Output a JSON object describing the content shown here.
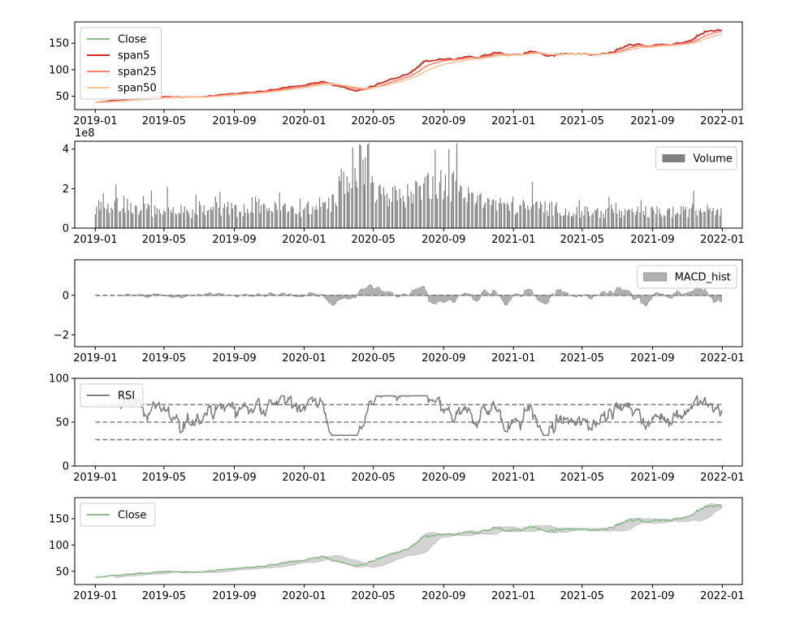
{
  "figure": {
    "background": "#ffffff"
  },
  "time_axis": {
    "start": "2019-01-01",
    "end": "2021-12-31",
    "xlim": [
      "2018-11-26",
      "2022-02-05"
    ],
    "tick_labels": [
      "2019-01",
      "2019-05",
      "2019-09",
      "2020-01",
      "2020-05",
      "2020-09",
      "2021-01",
      "2021-05",
      "2021-09",
      "2022-01"
    ]
  },
  "chart_data": [
    {
      "type": "line",
      "panel": "price",
      "ylim": [
        25,
        190
      ],
      "yticks": [
        50,
        100,
        150
      ],
      "ytick_labels": [
        "50",
        "100",
        "150"
      ],
      "x_anchor_months": [
        0,
        1,
        2,
        3,
        4,
        5,
        6,
        7,
        8,
        9,
        10,
        11,
        12,
        13,
        14,
        15,
        16,
        17,
        18,
        19,
        20,
        21,
        22,
        23,
        24,
        25,
        26,
        27,
        28,
        29,
        30,
        31,
        32,
        33,
        34,
        35,
        36
      ],
      "close": [
        38,
        42,
        44,
        47,
        50,
        47,
        50,
        52,
        55,
        58,
        62,
        66,
        72,
        78,
        68,
        60,
        70,
        82,
        92,
        115,
        118,
        120,
        125,
        132,
        128,
        135,
        125,
        130,
        128,
        130,
        140,
        148,
        145,
        150,
        155,
        170,
        176
      ],
      "series": [
        {
          "name": "Close",
          "color": "#8fbc8f",
          "span": 1
        },
        {
          "name": "span5",
          "color": "#d62728",
          "span": 5
        },
        {
          "name": "span25",
          "color": "#fa8072",
          "span": 25
        },
        {
          "name": "span50",
          "color": "#ffc299",
          "span": 50
        }
      ],
      "legend": {
        "position": "upper left",
        "entries": [
          "Close",
          "span5",
          "span25",
          "span50"
        ]
      }
    },
    {
      "type": "bar",
      "panel": "volume",
      "ylim": [
        0,
        4.4
      ],
      "yticks": [
        0,
        2,
        4
      ],
      "ytick_labels": [
        "0",
        "2",
        "4"
      ],
      "scale_label": "1e8",
      "series": [
        {
          "name": "Volume",
          "color": "#808080"
        }
      ],
      "approx_level": [
        1.2,
        1.4,
        1.1,
        1.0,
        1.0,
        0.9,
        1.0,
        1.1,
        1.0,
        1.3,
        1.1,
        1.0,
        1.1,
        1.4,
        2.6,
        3.6,
        2.0,
        1.8,
        2.2,
        2.6,
        2.4,
        1.9,
        1.5,
        1.3,
        1.2,
        1.2,
        1.1,
        0.9,
        0.9,
        0.9,
        0.8,
        0.9,
        0.9,
        0.9,
        1.0,
        1.1,
        1.0
      ],
      "legend": {
        "position": "upper right",
        "entries": [
          "Volume"
        ]
      }
    },
    {
      "type": "area",
      "panel": "macd",
      "ylim": [
        -2.6,
        1.8
      ],
      "yticks": [
        0,
        -2
      ],
      "ytick_labels": [
        "0",
        "−2"
      ],
      "series": [
        {
          "name": "MACD_hist",
          "color": "#b0b0b0"
        }
      ],
      "zero_line": 0,
      "legend": {
        "position": "upper right",
        "entries": [
          "MACD_hist"
        ]
      }
    },
    {
      "type": "line",
      "panel": "rsi",
      "ylim": [
        0,
        100
      ],
      "yticks": [
        0,
        50,
        100
      ],
      "ytick_labels": [
        "0",
        "50",
        "100"
      ],
      "reference_lines": [
        30,
        50,
        70
      ],
      "series": [
        {
          "name": "RSI",
          "color": "#808080"
        }
      ],
      "legend": {
        "position": "upper left",
        "entries": [
          "RSI"
        ]
      }
    },
    {
      "type": "line",
      "panel": "bollinger",
      "ylim": [
        25,
        190
      ],
      "yticks": [
        50,
        100,
        150
      ],
      "ytick_labels": [
        "50",
        "100",
        "150"
      ],
      "series": [
        {
          "name": "Close",
          "color": "#8fbc8f"
        },
        {
          "name": "band",
          "color": "#cccccc"
        }
      ],
      "legend": {
        "position": "upper left",
        "entries": [
          "Close"
        ]
      }
    }
  ]
}
